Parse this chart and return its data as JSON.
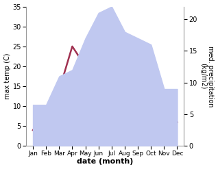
{
  "months": [
    "Jan",
    "Feb",
    "Mar",
    "Apr",
    "May",
    "Jun",
    "Jul",
    "Aug",
    "Sep",
    "Oct",
    "Nov",
    "Dec"
  ],
  "x": [
    1,
    2,
    3,
    4,
    5,
    6,
    7,
    8,
    9,
    10,
    11,
    12
  ],
  "temperature": [
    4,
    8,
    14,
    25,
    20,
    30,
    30,
    28,
    22,
    15,
    9,
    6
  ],
  "precipitation": [
    6.5,
    6.5,
    11,
    12,
    17,
    21,
    22,
    18,
    17,
    16,
    9,
    9
  ],
  "temp_color": "#a03050",
  "precip_fill_color": "#c0c8f0",
  "xlabel": "date (month)",
  "ylabel_left": "max temp (C)",
  "ylabel_right": "med. precipitation\n(kg/m2)",
  "ylim_left": [
    0,
    35
  ],
  "ylim_right": [
    0,
    22
  ],
  "yticks_left": [
    0,
    5,
    10,
    15,
    20,
    25,
    30,
    35
  ],
  "yticks_right": [
    0,
    5,
    10,
    15,
    20
  ],
  "bg_color": "#ffffff",
  "temp_linewidth": 1.8
}
